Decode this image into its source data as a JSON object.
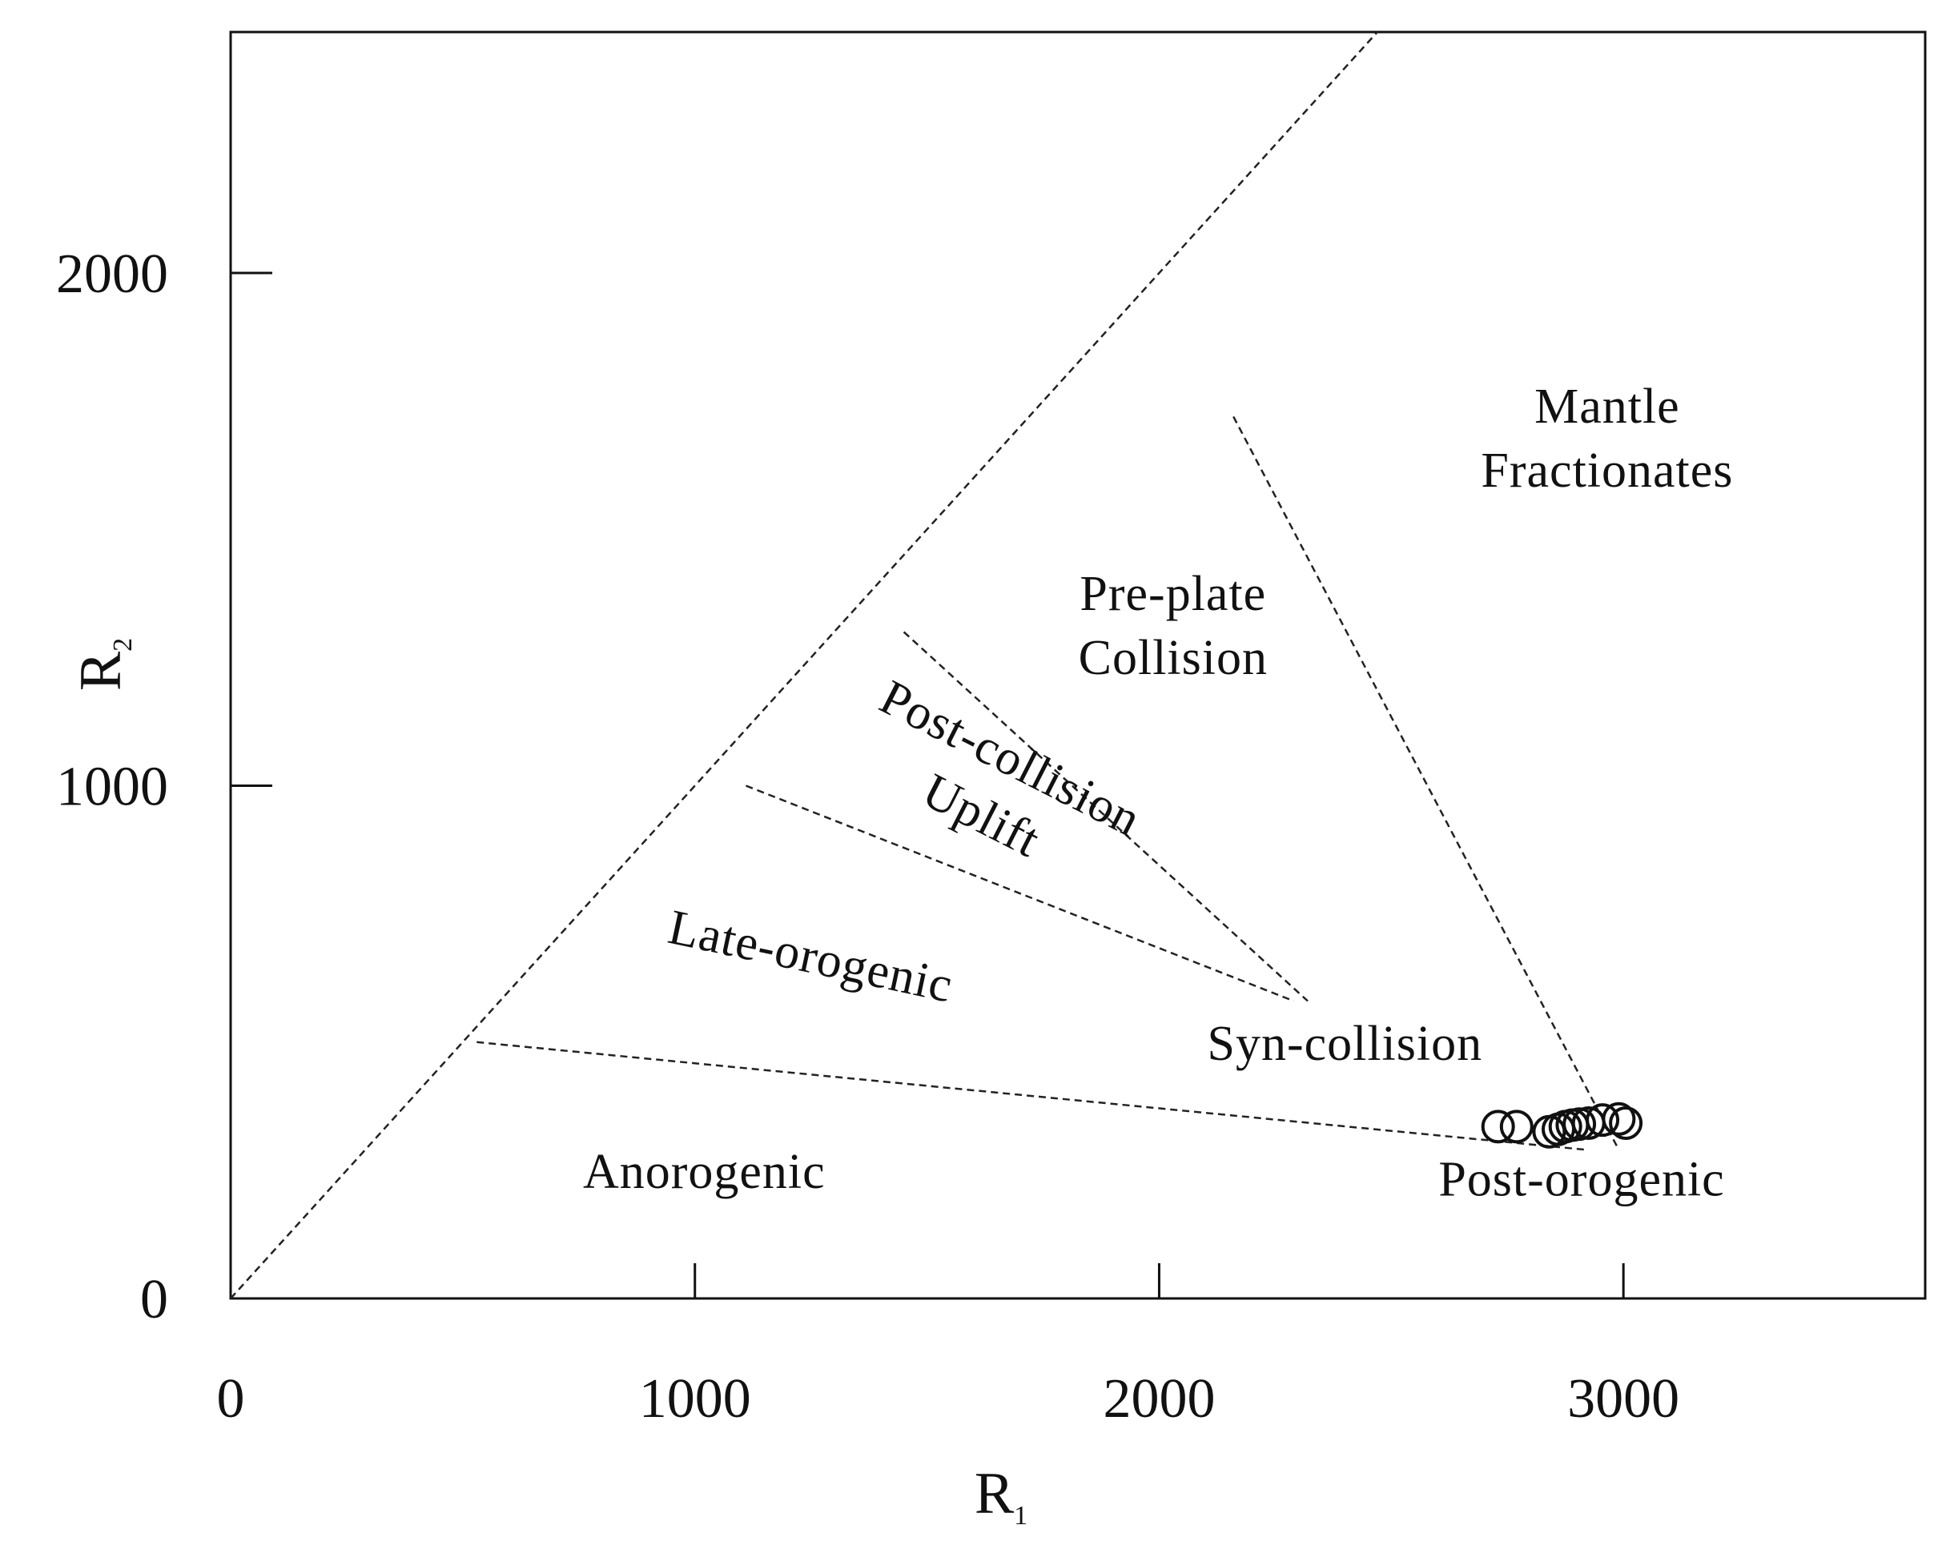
{
  "chart_data": {
    "type": "scatter",
    "title": "",
    "xlabel": {
      "main": "R",
      "sub": "1"
    },
    "ylabel": {
      "main": "R",
      "sub": "2"
    },
    "xlim": [
      0,
      3650
    ],
    "ylim": [
      0,
      2470
    ],
    "x_ticks": [
      {
        "value": 0,
        "label": "0"
      },
      {
        "value": 1000,
        "label": "1000"
      },
      {
        "value": 2000,
        "label": "2000"
      },
      {
        "value": 3000,
        "label": "3000"
      }
    ],
    "y_ticks": [
      {
        "value": 0,
        "label": "0"
      },
      {
        "value": 1000,
        "label": "1000"
      },
      {
        "value": 2000,
        "label": "2000"
      }
    ],
    "boundaries": [
      {
        "name": "mantle-line",
        "points": [
          [
            0,
            0
          ],
          [
            2470,
            2470
          ]
        ]
      },
      {
        "name": "mantle-fractionates-boundary",
        "points": [
          [
            2160,
            1720
          ],
          [
            2990,
            290
          ]
        ]
      },
      {
        "name": "post-collision-upper-boundary",
        "points": [
          [
            1450,
            1300
          ],
          [
            2320,
            580
          ]
        ]
      },
      {
        "name": "post-collision-lower-boundary",
        "points": [
          [
            1110,
            1000
          ],
          [
            2290,
            580
          ]
        ]
      },
      {
        "name": "late-orogenic-boundary",
        "points": [
          [
            530,
            500
          ],
          [
            2920,
            290
          ]
        ]
      }
    ],
    "regions": [
      {
        "name": "mantle-fractionates",
        "lines": [
          "Mantle",
          "Fractionates"
        ],
        "x": 2965,
        "y": 1680,
        "rotation": 0
      },
      {
        "name": "pre-plate-collision",
        "lines": [
          "Pre-plate",
          "Collision"
        ],
        "x": 2030,
        "y": 1315,
        "rotation": 0
      },
      {
        "name": "post-collision-uplift",
        "lines": [
          "Post-collision",
          "Uplift"
        ],
        "x": 1650,
        "y": 1000,
        "rotation": 27
      },
      {
        "name": "late-orogenic",
        "lines": [
          "Late-orogenic"
        ],
        "x": 1250,
        "y": 670,
        "rotation": 12
      },
      {
        "name": "syn-collision",
        "lines": [
          "Syn-collision"
        ],
        "x": 2400,
        "y": 500,
        "rotation": 0
      },
      {
        "name": "anorogenic",
        "lines": [
          "Anorogenic"
        ],
        "x": 1020,
        "y": 250,
        "rotation": 0
      },
      {
        "name": "post-orogenic",
        "lines": [
          "Post-orogenic"
        ],
        "x": 2910,
        "y": 235,
        "rotation": 0
      }
    ],
    "series": [
      {
        "values": [
          [
            2730,
            335
          ],
          [
            2770,
            335
          ],
          [
            2840,
            325
          ],
          [
            2860,
            330
          ],
          [
            2875,
            335
          ],
          [
            2890,
            338
          ],
          [
            2905,
            340
          ],
          [
            2925,
            342
          ],
          [
            2955,
            348
          ],
          [
            2990,
            350
          ],
          [
            3005,
            342
          ]
        ]
      }
    ],
    "grid": false,
    "legend": "none"
  }
}
